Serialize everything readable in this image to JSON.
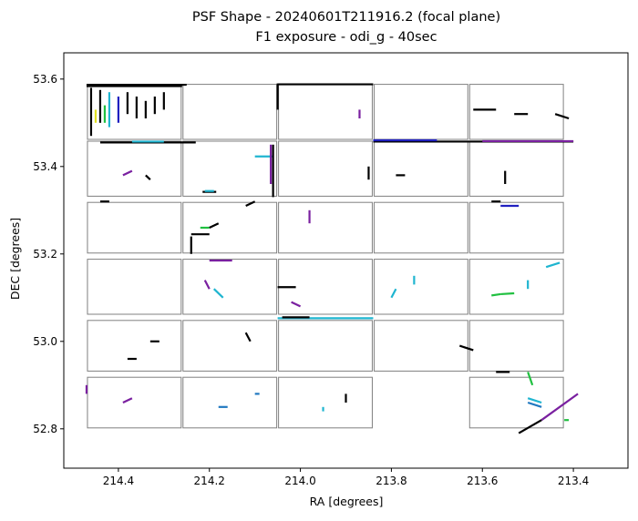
{
  "chart_data": {
    "type": "scatter",
    "title": "PSF Shape - 20240601T211916.2 (focal plane)",
    "subtitle": "F1 exposure - odi_g - 40sec",
    "xlabel": "RA [degrees]",
    "ylabel": "DEC [degrees]",
    "xlim": [
      214.52,
      213.28
    ],
    "ylim": [
      52.71,
      53.66
    ],
    "x_inverted": true,
    "grid": false,
    "xticks": [
      214.4,
      214.2,
      214.0,
      213.8,
      213.6,
      213.4
    ],
    "xtick_labels": [
      "214.4",
      "214.2",
      "214.0",
      "213.8",
      "213.6",
      "213.4"
    ],
    "yticks": [
      52.8,
      53.0,
      53.2,
      53.4,
      53.6
    ],
    "ytick_labels": [
      "52.8",
      "53.0",
      "53.2",
      "53.4",
      "53.6"
    ],
    "ccds": [
      {
        "ra": [
          214.47,
          214.26
        ],
        "dec": [
          53.46,
          53.59
        ]
      },
      {
        "ra": [
          214.26,
          214.05
        ],
        "dec": [
          53.46,
          53.59
        ]
      },
      {
        "ra": [
          214.05,
          213.84
        ],
        "dec": [
          53.46,
          53.59
        ]
      },
      {
        "ra": [
          213.84,
          213.63
        ],
        "dec": [
          53.46,
          53.59
        ]
      },
      {
        "ra": [
          213.63,
          213.42
        ],
        "dec": [
          53.46,
          53.59
        ]
      },
      {
        "ra": [
          214.47,
          214.26
        ],
        "dec": [
          53.33,
          53.46
        ]
      },
      {
        "ra": [
          214.26,
          214.05
        ],
        "dec": [
          53.33,
          53.46
        ]
      },
      {
        "ra": [
          214.05,
          213.84
        ],
        "dec": [
          53.33,
          53.46
        ]
      },
      {
        "ra": [
          213.84,
          213.63
        ],
        "dec": [
          53.33,
          53.46
        ]
      },
      {
        "ra": [
          213.63,
          213.42
        ],
        "dec": [
          53.33,
          53.46
        ]
      },
      {
        "ra": [
          214.47,
          214.26
        ],
        "dec": [
          53.2,
          53.32
        ]
      },
      {
        "ra": [
          214.26,
          214.05
        ],
        "dec": [
          53.2,
          53.32
        ]
      },
      {
        "ra": [
          214.05,
          213.84
        ],
        "dec": [
          53.2,
          53.32
        ]
      },
      {
        "ra": [
          213.84,
          213.63
        ],
        "dec": [
          53.2,
          53.32
        ]
      },
      {
        "ra": [
          213.63,
          213.42
        ],
        "dec": [
          53.2,
          53.32
        ]
      },
      {
        "ra": [
          214.47,
          214.26
        ],
        "dec": [
          53.06,
          53.19
        ]
      },
      {
        "ra": [
          214.26,
          214.05
        ],
        "dec": [
          53.06,
          53.19
        ]
      },
      {
        "ra": [
          214.05,
          213.84
        ],
        "dec": [
          53.06,
          53.19
        ]
      },
      {
        "ra": [
          213.84,
          213.63
        ],
        "dec": [
          53.06,
          53.19
        ]
      },
      {
        "ra": [
          213.63,
          213.42
        ],
        "dec": [
          53.06,
          53.19
        ]
      },
      {
        "ra": [
          214.47,
          214.26
        ],
        "dec": [
          52.93,
          53.05
        ]
      },
      {
        "ra": [
          214.26,
          214.05
        ],
        "dec": [
          52.93,
          53.05
        ]
      },
      {
        "ra": [
          214.05,
          213.84
        ],
        "dec": [
          52.93,
          53.05
        ]
      },
      {
        "ra": [
          213.84,
          213.63
        ],
        "dec": [
          52.93,
          53.05
        ]
      },
      {
        "ra": [
          213.63,
          213.42
        ],
        "dec": [
          52.93,
          53.05
        ]
      },
      {
        "ra": [
          214.47,
          214.26
        ],
        "dec": [
          52.8,
          52.92
        ]
      },
      {
        "ra": [
          214.26,
          214.05
        ],
        "dec": [
          52.8,
          52.92
        ]
      },
      {
        "ra": [
          214.05,
          213.84
        ],
        "dec": [
          52.8,
          52.92
        ]
      },
      {
        "ra": [
          213.63,
          213.42
        ],
        "dec": [
          52.8,
          52.92
        ]
      }
    ],
    "psf_segments": [
      {
        "ra": [
          214.47,
          214.25
        ],
        "dec": [
          53.587,
          53.587
        ],
        "color": "#000000"
      },
      {
        "ra": [
          214.46,
          214.46
        ],
        "dec": [
          53.58,
          53.47
        ],
        "color": "#000000"
      },
      {
        "ra": [
          214.44,
          214.44
        ],
        "dec": [
          53.575,
          53.5
        ],
        "color": "#000000"
      },
      {
        "ra": [
          214.42,
          214.42
        ],
        "dec": [
          53.57,
          53.49
        ],
        "color": "#1fb5d0"
      },
      {
        "ra": [
          214.4,
          214.4
        ],
        "dec": [
          53.56,
          53.5
        ],
        "color": "#2020c0"
      },
      {
        "ra": [
          214.38,
          214.38
        ],
        "dec": [
          53.57,
          53.52
        ],
        "color": "#000000"
      },
      {
        "ra": [
          214.36,
          214.36
        ],
        "dec": [
          53.56,
          53.51
        ],
        "color": "#000000"
      },
      {
        "ra": [
          214.34,
          214.34
        ],
        "dec": [
          53.55,
          53.51
        ],
        "color": "#000000"
      },
      {
        "ra": [
          214.32,
          214.32
        ],
        "dec": [
          53.56,
          53.52
        ],
        "color": "#000000"
      },
      {
        "ra": [
          214.3,
          214.3
        ],
        "dec": [
          53.57,
          53.53
        ],
        "color": "#000000"
      },
      {
        "ra": [
          214.45,
          214.45
        ],
        "dec": [
          53.53,
          53.5
        ],
        "color": "#e0e020"
      },
      {
        "ra": [
          214.43,
          214.43
        ],
        "dec": [
          53.54,
          53.5
        ],
        "color": "#20c040"
      },
      {
        "ra": [
          214.44,
          214.23
        ],
        "dec": [
          53.455,
          53.455
        ],
        "color": "#000000"
      },
      {
        "ra": [
          214.37,
          214.3
        ],
        "dec": [
          53.457,
          53.457
        ],
        "color": "#1fb5d0"
      },
      {
        "ra": [
          214.1,
          214.06
        ],
        "dec": [
          53.423,
          53.423
        ],
        "color": "#1fb5d0"
      },
      {
        "ra": [
          214.06,
          214.06
        ],
        "dec": [
          53.45,
          53.33
        ],
        "color": "#000000"
      },
      {
        "ra": [
          214.065,
          214.065
        ],
        "dec": [
          53.45,
          53.36
        ],
        "color": "#7a20a0"
      },
      {
        "ra": [
          214.215,
          214.185
        ],
        "dec": [
          53.342,
          53.342
        ],
        "color": "#000000"
      },
      {
        "ra": [
          214.21,
          214.19
        ],
        "dec": [
          53.344,
          53.344
        ],
        "color": "#1fb5d0"
      },
      {
        "ra": [
          213.84,
          213.4
        ],
        "dec": [
          53.457,
          53.457
        ],
        "color": "#000000"
      },
      {
        "ra": [
          213.84,
          213.7
        ],
        "dec": [
          53.46,
          53.46
        ],
        "color": "#2020c0"
      },
      {
        "ra": [
          213.6,
          213.4
        ],
        "dec": [
          53.458,
          53.458
        ],
        "color": "#7a20a0"
      },
      {
        "ra": [
          214.05,
          213.84
        ],
        "dec": [
          53.588,
          53.588
        ],
        "color": "#000000"
      },
      {
        "ra": [
          214.47,
          214.26
        ],
        "dec": [
          53.584,
          53.584
        ],
        "color": "#000000"
      },
      {
        "ra": [
          214.44,
          214.42
        ],
        "dec": [
          53.32,
          53.32
        ],
        "color": "#000000"
      },
      {
        "ra": [
          214.22,
          214.2
        ],
        "dec": [
          53.26,
          53.26
        ],
        "color": "#20c040"
      },
      {
        "ra": [
          214.2,
          214.18
        ],
        "dec": [
          53.26,
          53.27
        ],
        "color": "#000000"
      },
      {
        "ra": [
          214.24,
          214.24
        ],
        "dec": [
          53.24,
          53.2
        ],
        "color": "#000000"
      },
      {
        "ra": [
          214.2,
          214.15
        ],
        "dec": [
          53.185,
          53.185
        ],
        "color": "#7a20a0"
      },
      {
        "ra": [
          214.05,
          214.01
        ],
        "dec": [
          53.124,
          53.124
        ],
        "color": "#000000"
      },
      {
        "ra": [
          214.02,
          214.0
        ],
        "dec": [
          53.09,
          53.08
        ],
        "color": "#7a20a0"
      },
      {
        "ra": [
          214.05,
          213.84
        ],
        "dec": [
          53.053,
          53.053
        ],
        "color": "#1fb5d0"
      },
      {
        "ra": [
          214.04,
          213.98
        ],
        "dec": [
          53.055,
          53.055
        ],
        "color": "#000000"
      },
      {
        "ra": [
          213.58,
          213.56
        ],
        "dec": [
          53.105,
          53.108
        ],
        "color": "#20c040"
      },
      {
        "ra": [
          213.56,
          213.53
        ],
        "dec": [
          53.108,
          53.11
        ],
        "color": "#20c040"
      },
      {
        "ra": [
          213.5,
          213.5
        ],
        "dec": [
          53.14,
          53.12
        ],
        "color": "#1fb5d0"
      },
      {
        "ra": [
          213.46,
          213.43
        ],
        "dec": [
          53.17,
          53.18
        ],
        "color": "#1fb5d0"
      },
      {
        "ra": [
          213.56,
          213.52
        ],
        "dec": [
          53.31,
          53.31
        ],
        "color": "#2020c0"
      },
      {
        "ra": [
          213.39,
          213.47
        ],
        "dec": [
          52.88,
          52.82
        ],
        "color": "#7a20a0"
      },
      {
        "ra": [
          213.47,
          213.52
        ],
        "dec": [
          52.82,
          52.79
        ],
        "color": "#000000"
      },
      {
        "ra": [
          213.5,
          213.47
        ],
        "dec": [
          52.87,
          52.86
        ],
        "color": "#1fb5d0"
      },
      {
        "ra": [
          213.5,
          213.47
        ],
        "dec": [
          52.86,
          52.85
        ],
        "color": "#2078c0"
      },
      {
        "ra": [
          213.42,
          213.41
        ],
        "dec": [
          52.82,
          52.82
        ],
        "color": "#20c040"
      },
      {
        "ra": [
          214.47,
          214.47
        ],
        "dec": [
          52.9,
          52.88
        ],
        "color": "#7a20a0"
      },
      {
        "ra": [
          214.39,
          214.37
        ],
        "dec": [
          52.86,
          52.87
        ],
        "color": "#7a20a0"
      },
      {
        "ra": [
          213.9,
          213.9
        ],
        "dec": [
          52.88,
          52.86
        ],
        "color": "#000000"
      },
      {
        "ra": [
          213.85,
          213.85
        ],
        "dec": [
          53.4,
          53.37
        ],
        "color": "#000000"
      },
      {
        "ra": [
          214.05,
          214.05
        ],
        "dec": [
          53.59,
          53.53
        ],
        "color": "#000000"
      },
      {
        "ra": [
          213.62,
          213.57
        ],
        "dec": [
          53.53,
          53.53
        ],
        "color": "#000000"
      },
      {
        "ra": [
          213.53,
          213.5
        ],
        "dec": [
          53.52,
          53.52
        ],
        "color": "#000000"
      },
      {
        "ra": [
          213.44,
          213.41
        ],
        "dec": [
          53.52,
          53.51
        ],
        "color": "#000000"
      },
      {
        "ra": [
          213.87,
          213.87
        ],
        "dec": [
          53.53,
          53.51
        ],
        "color": "#7a20a0"
      },
      {
        "ra": [
          214.39,
          214.37
        ],
        "dec": [
          53.38,
          53.39
        ],
        "color": "#7a20a0"
      },
      {
        "ra": [
          214.34,
          214.33
        ],
        "dec": [
          53.38,
          53.37
        ],
        "color": "#000000"
      },
      {
        "ra": [
          213.79,
          213.77
        ],
        "dec": [
          53.38,
          53.38
        ],
        "color": "#000000"
      },
      {
        "ra": [
          213.55,
          213.55
        ],
        "dec": [
          53.39,
          53.36
        ],
        "color": "#000000"
      },
      {
        "ra": [
          213.58,
          213.56
        ],
        "dec": [
          53.32,
          53.32
        ],
        "color": "#000000"
      },
      {
        "ra": [
          213.98,
          213.98
        ],
        "dec": [
          53.3,
          53.27
        ],
        "color": "#7a20a0"
      },
      {
        "ra": [
          214.24,
          214.2
        ],
        "dec": [
          53.245,
          53.245
        ],
        "color": "#000000"
      },
      {
        "ra": [
          214.12,
          214.1
        ],
        "dec": [
          53.31,
          53.32
        ],
        "color": "#000000"
      },
      {
        "ra": [
          214.33,
          214.31
        ],
        "dec": [
          53.0,
          53.0
        ],
        "color": "#000000"
      },
      {
        "ra": [
          214.12,
          214.11
        ],
        "dec": [
          53.02,
          53.0
        ],
        "color": "#000000"
      },
      {
        "ra": [
          213.8,
          213.79
        ],
        "dec": [
          53.1,
          53.12
        ],
        "color": "#1fb5d0"
      },
      {
        "ra": [
          213.75,
          213.75
        ],
        "dec": [
          53.15,
          53.13
        ],
        "color": "#1fb5d0"
      },
      {
        "ra": [
          214.19,
          214.17
        ],
        "dec": [
          53.12,
          53.1
        ],
        "color": "#1fb5d0"
      },
      {
        "ra": [
          214.21,
          214.2
        ],
        "dec": [
          53.14,
          53.12
        ],
        "color": "#7a20a0"
      },
      {
        "ra": [
          214.38,
          214.36
        ],
        "dec": [
          52.96,
          52.96
        ],
        "color": "#000000"
      },
      {
        "ra": [
          213.65,
          213.62
        ],
        "dec": [
          52.99,
          52.98
        ],
        "color": "#000000"
      },
      {
        "ra": [
          213.57,
          213.54
        ],
        "dec": [
          52.93,
          52.93
        ],
        "color": "#000000"
      },
      {
        "ra": [
          213.5,
          213.49
        ],
        "dec": [
          52.93,
          52.9
        ],
        "color": "#20c040"
      },
      {
        "ra": [
          214.18,
          214.16
        ],
        "dec": [
          52.85,
          52.85
        ],
        "color": "#2078c0"
      },
      {
        "ra": [
          214.1,
          214.09
        ],
        "dec": [
          52.88,
          52.88
        ],
        "color": "#2078c0"
      },
      {
        "ra": [
          213.95,
          213.95
        ],
        "dec": [
          52.85,
          52.84
        ],
        "color": "#1fb5d0"
      }
    ]
  }
}
